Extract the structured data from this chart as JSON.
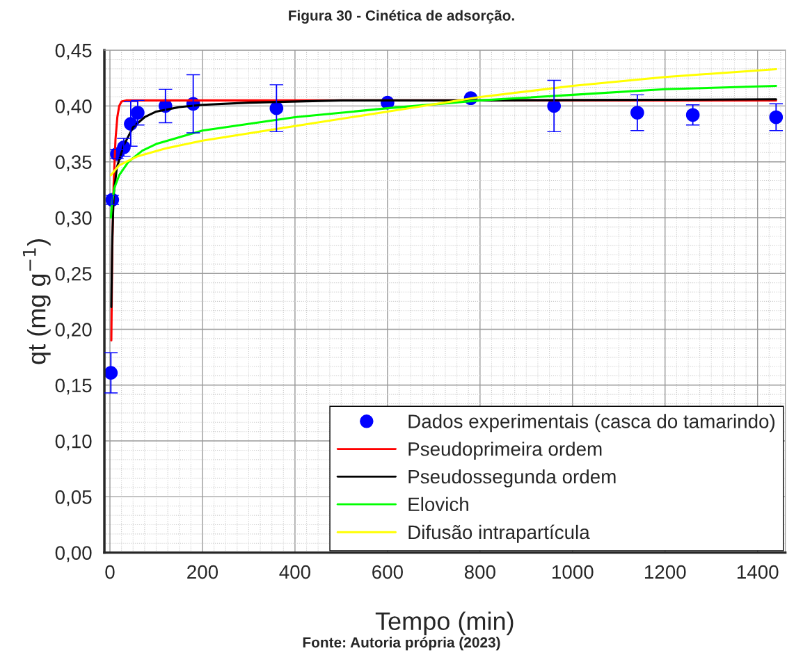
{
  "chart_data": {
    "type": "scatter",
    "title": "Figura 30 - Cinética de adsorção.",
    "xlabel": "Tempo (min)",
    "ylabel": "qt (mg g$^{−1}$)",
    "annotations": [
      "Fonte: Autoria própria (2023)"
    ],
    "xlim": [
      -12,
      1460
    ],
    "xticks": [
      0,
      200,
      400,
      600,
      800,
      1000,
      1200,
      1400
    ],
    "ylim": [
      0,
      0.45
    ],
    "yticks": [
      {
        "value": 0,
        "label": "0,00"
      },
      {
        "value": 0.05,
        "label": "0,05"
      },
      {
        "value": 0.1,
        "label": "0,10"
      },
      {
        "value": 0.15,
        "label": "0,15"
      },
      {
        "value": 0.2,
        "label": "0,20"
      },
      {
        "value": 0.25,
        "label": "0,25"
      },
      {
        "value": 0.3,
        "label": "0,30"
      },
      {
        "value": 0.35,
        "label": "0,35"
      },
      {
        "value": 0.4,
        "label": "0,40"
      },
      {
        "value": 0.45,
        "label": "0,45"
      }
    ],
    "grid": true,
    "legend": "bottom right",
    "series": [
      {
        "name": "Dados experimentais (casca do tamarindo)",
        "marker": "circle",
        "color": "#0000ff",
        "x": [
          2,
          5,
          15,
          30,
          45,
          60,
          120,
          180,
          360,
          600,
          780,
          960,
          1140,
          1260,
          1440
        ],
        "values": [
          0.161,
          0.316,
          0.357,
          0.363,
          0.384,
          0.394,
          0.4,
          0.402,
          0.398,
          0.403,
          0.407,
          0.4,
          0.394,
          0.392,
          0.39
        ],
        "errors": [
          0.018,
          0.004,
          0.004,
          0.008,
          0.02,
          0.011,
          0.015,
          0.026,
          0.021,
          null,
          null,
          0.023,
          0.016,
          0.009,
          0.012
        ]
      },
      {
        "name": "Pseudoprimeira ordem",
        "type": "line",
        "color": "#ff0000",
        "x": [
          3,
          5,
          8,
          12,
          16,
          20,
          25,
          35,
          1440
        ],
        "values": [
          0.19,
          0.27,
          0.33,
          0.37,
          0.39,
          0.4,
          0.404,
          0.405,
          0.405
        ]
      },
      {
        "name": "Pseudossegunda ordem",
        "type": "line",
        "color": "#000000",
        "x": [
          3,
          5,
          8,
          15,
          30,
          50,
          75,
          100,
          150,
          200,
          300,
          500,
          800,
          1440
        ],
        "values": [
          0.22,
          0.28,
          0.32,
          0.345,
          0.365,
          0.381,
          0.39,
          0.395,
          0.399,
          0.401,
          0.403,
          0.405,
          0.405,
          0.406
        ]
      },
      {
        "name": "Elovich",
        "type": "line",
        "color": "#00ff00",
        "x": [
          2,
          5,
          10,
          20,
          40,
          70,
          100,
          200,
          400,
          600,
          800,
          1000,
          1200,
          1440
        ],
        "values": [
          0.3,
          0.315,
          0.327,
          0.338,
          0.35,
          0.36,
          0.366,
          0.378,
          0.39,
          0.398,
          0.405,
          0.41,
          0.415,
          0.418
        ]
      },
      {
        "name": "Difusão intrapartícula",
        "type": "line",
        "color": "#ffff00",
        "x": [
          2,
          20,
          60,
          120,
          200,
          400,
          600,
          800,
          1000,
          1200,
          1440
        ],
        "values": [
          0.338,
          0.347,
          0.355,
          0.362,
          0.369,
          0.382,
          0.395,
          0.408,
          0.418,
          0.426,
          0.433
        ]
      }
    ]
  }
}
